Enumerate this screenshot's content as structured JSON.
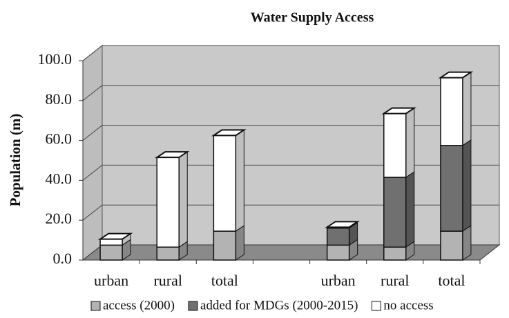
{
  "chart_data": {
    "type": "bar",
    "stacked": true,
    "title": "Water Supply Access",
    "y_label": "Population (m)",
    "categories": [
      "urban",
      "rural",
      "total",
      null,
      "urban",
      "rural",
      "total"
    ],
    "series": [
      {
        "name": "access (2000)",
        "color": "#b3b3b3",
        "values": [
          7.5,
          6.5,
          14.5,
          null,
          7.5,
          6.5,
          14.5
        ]
      },
      {
        "name": "added for MDGs (2000-2015)",
        "color": "#707070",
        "values": [
          0,
          0,
          0,
          null,
          8.5,
          35,
          43
        ]
      },
      {
        "name": "no access",
        "color": "#ffffff",
        "values": [
          3,
          45,
          48,
          null,
          0.5,
          32,
          34
        ]
      }
    ],
    "ylim": [
      0,
      100
    ],
    "yticks": [
      {
        "value": 0,
        "label": "0.0"
      },
      {
        "value": 20,
        "label": "20.0"
      },
      {
        "value": 40,
        "label": "40.0"
      },
      {
        "value": 60,
        "label": "60.0"
      },
      {
        "value": 80,
        "label": "80.0"
      },
      {
        "value": 100,
        "label": "100.0"
      }
    ],
    "grid": true,
    "legend": "bottom"
  }
}
